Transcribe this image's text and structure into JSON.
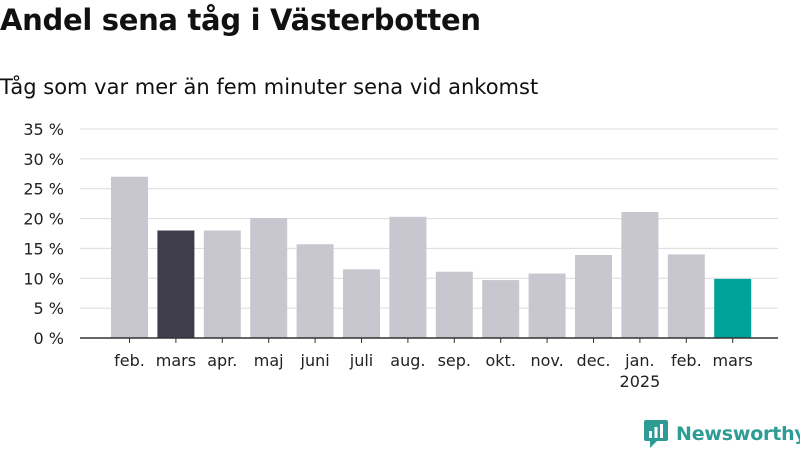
{
  "header": {
    "title": "Andel sena tåg i Västerbotten",
    "subtitle": "Tåg som var mer än fem minuter sena vid ankomst"
  },
  "brand": {
    "name": "Newsworthy",
    "color": "#2e9c95"
  },
  "chart_data": {
    "type": "bar",
    "categories": [
      "feb.",
      "mars",
      "apr.",
      "maj",
      "juni",
      "juli",
      "aug.",
      "sep.",
      "okt.",
      "nov.",
      "dec.",
      "jan.",
      "feb.",
      "mars"
    ],
    "category_sublabels": [
      "",
      "",
      "",
      "",
      "",
      "",
      "",
      "",
      "",
      "",
      "",
      "2025",
      "",
      ""
    ],
    "values": [
      27.0,
      18.0,
      18.0,
      20.1,
      15.7,
      11.5,
      20.3,
      11.1,
      9.7,
      10.8,
      13.9,
      21.1,
      14.0,
      9.9
    ],
    "highlight": {
      "1": "#3f3d4b",
      "13": "#00a399"
    },
    "bar_color": "#c8c7d0",
    "yticks": [
      "0 %",
      "5 %",
      "10 %",
      "15 %",
      "20 %",
      "25 %",
      "30 %",
      "35 %"
    ],
    "ylim": [
      0,
      35
    ],
    "grid": true,
    "title": "Andel sena tåg i Västerbotten",
    "xlabel": "",
    "ylabel": ""
  }
}
